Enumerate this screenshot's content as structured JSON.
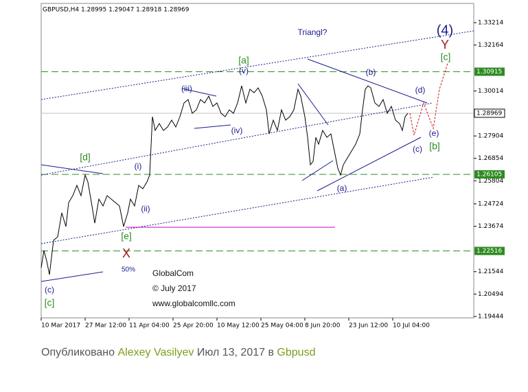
{
  "chart_data": {
    "type": "line",
    "header": "GBPUSD,H4  1.28995 1.29047 1.28918 1.28969",
    "xlim": [
      0,
      78.75
    ],
    "ylim": [
      1.1938,
      1.34115
    ],
    "xticks": [
      {
        "value": 0,
        "label": "10 Mar 2017"
      },
      {
        "value": 8,
        "label": "27 Mar 12:00"
      },
      {
        "value": 16,
        "label": "11 Apr 04:00"
      },
      {
        "value": 24,
        "label": "25 Apr 20:00"
      },
      {
        "value": 32,
        "label": "10 May 12:00"
      },
      {
        "value": 40,
        "label": "25 May 04:00"
      },
      {
        "value": 48,
        "label": "8 Jun 20:00"
      },
      {
        "value": 56,
        "label": "23 Jun 12:00"
      },
      {
        "value": 64,
        "label": "10 Jul 04:00"
      }
    ],
    "yticks": [
      1.33214,
      1.32164,
      1.30014,
      1.27904,
      1.26854,
      1.25804,
      1.24724,
      1.23674,
      1.21544,
      1.20494,
      1.19444
    ],
    "levels": [
      1.30915,
      1.26105,
      1.22516
    ],
    "last_price": 1.28969,
    "series": [
      {
        "color": "#000000",
        "x": [
          0,
          0.5,
          1,
          1.5,
          2.25,
          3,
          3.75,
          4.5,
          5,
          5.75,
          6.5,
          7.25,
          8,
          8.5,
          9.25,
          9.75,
          10.5,
          11.25,
          12,
          12.75,
          13.5,
          14.25,
          15,
          15.75,
          16.25,
          17,
          17.75,
          18.5,
          19.25,
          19.75,
          20.25,
          20.75,
          21.5,
          22.25,
          23,
          23.75,
          24.5,
          25.25,
          26,
          26.75,
          27.5,
          28.25,
          29,
          29.75,
          30.5,
          31.25,
          32,
          32.75,
          33.5,
          34.25,
          35,
          35.75,
          36.5,
          37.25,
          38,
          38.75,
          39.5,
          40.25,
          41,
          41.5,
          42.25,
          43,
          43.75,
          44.5,
          45.25,
          46,
          46.75,
          47.25,
          48,
          48.5,
          49,
          49.5,
          50,
          50.5,
          51.25,
          52,
          52.75,
          53.5,
          54,
          54.5,
          55,
          55.75,
          56.5,
          57.25,
          58,
          58.5,
          59,
          59.5,
          60,
          60.75,
          61.5,
          62.25,
          63,
          63.75,
          64.5,
          65.25,
          65.75,
          66.25,
          66.75
        ],
        "values": [
          1.21728,
          1.22533,
          1.2205,
          1.21406,
          1.23015,
          1.23176,
          1.24302,
          1.23659,
          1.24785,
          1.25106,
          1.25589,
          1.25106,
          1.26072,
          1.2575,
          1.24624,
          1.23819,
          1.24946,
          1.24624,
          1.25106,
          1.24946,
          1.24785,
          1.24624,
          1.23659,
          1.24302,
          1.24946,
          1.24624,
          1.25589,
          1.25428,
          1.2575,
          1.26072,
          1.28806,
          1.28163,
          1.28485,
          1.28163,
          1.28324,
          1.28645,
          1.28324,
          1.28806,
          1.2945,
          1.29611,
          1.28967,
          1.29128,
          1.29611,
          1.2945,
          1.29771,
          1.29289,
          1.2945,
          1.28967,
          1.28806,
          1.29128,
          1.28967,
          1.2945,
          1.30254,
          1.2945,
          1.30093,
          1.29932,
          1.30158,
          1.29771,
          1.29128,
          1.28002,
          1.28645,
          1.28163,
          1.29128,
          1.28645,
          1.28806,
          1.29128,
          1.30093,
          1.29771,
          1.28806,
          1.27841,
          1.26554,
          1.26715,
          1.27841,
          1.27519,
          1.28163,
          1.27841,
          1.28002,
          1.27037,
          1.26393,
          1.26072,
          1.26554,
          1.26876,
          1.27198,
          1.27519,
          1.28002,
          1.29128,
          1.30093,
          1.30254,
          1.30158,
          1.2945,
          1.29289,
          1.29611,
          1.28967,
          1.29289,
          1.28645,
          1.28485,
          1.28163,
          1.28806,
          1.28969
        ]
      }
    ],
    "annotations": [
      "Triangl?",
      "(4)",
      "Y",
      "[c]",
      "[a]",
      "(v)",
      "(b)",
      "(iii)",
      "(d)",
      "(iv)",
      "(e)",
      "(c)",
      "[b]",
      "[d]",
      "(i)",
      "(a)",
      "(ii)",
      "[e]",
      "X",
      "50%",
      "(c)",
      "[c]"
    ],
    "watermark": [
      "GlobalCom",
      "© July 2017",
      "www.globalcomllc.com"
    ]
  },
  "footer": {
    "prefix": "Опубликовано",
    "author": "Alexey Vasilyev",
    "date": "Июл 13, 2017 в",
    "symbol": "Gbpusd"
  }
}
